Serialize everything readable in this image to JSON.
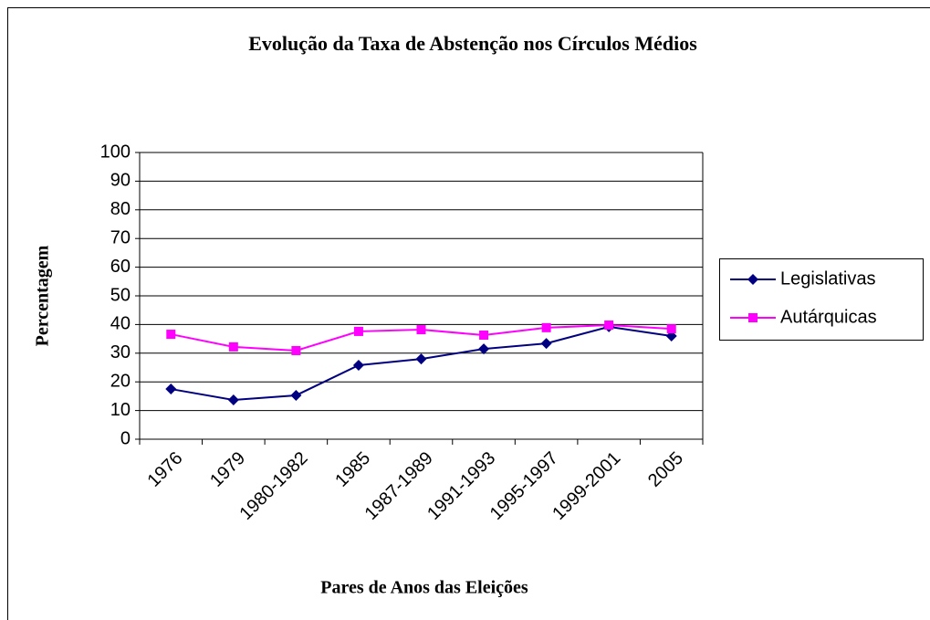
{
  "chart_data": {
    "type": "line",
    "title": "Evolução da Taxa de Abstenção nos Círculos Médios",
    "x_label": "Pares de Anos das Eleições",
    "y_label": "Percentagem",
    "categories": [
      "1976",
      "1979",
      "1980-1982",
      "1985",
      "1987-1989",
      "1991-1993",
      "1995-1997",
      "1999-2001",
      "2005"
    ],
    "series": [
      {
        "name": "Legislativas",
        "color": "#000080",
        "marker": "diamond",
        "values": [
          17.5,
          13.7,
          15.3,
          25.8,
          28,
          31.5,
          33.4,
          39.2,
          36
        ]
      },
      {
        "name": "Autárquicas",
        "color": "#ff00ff",
        "marker": "square",
        "values": [
          36.6,
          32.2,
          30.9,
          37.6,
          38.2,
          36.3,
          38.9,
          39.8,
          38.5
        ]
      }
    ],
    "ylim": [
      0,
      100
    ],
    "yticks": [
      0,
      10,
      20,
      30,
      40,
      50,
      60,
      70,
      80,
      90,
      100
    ],
    "grid": true,
    "legend": "right"
  }
}
